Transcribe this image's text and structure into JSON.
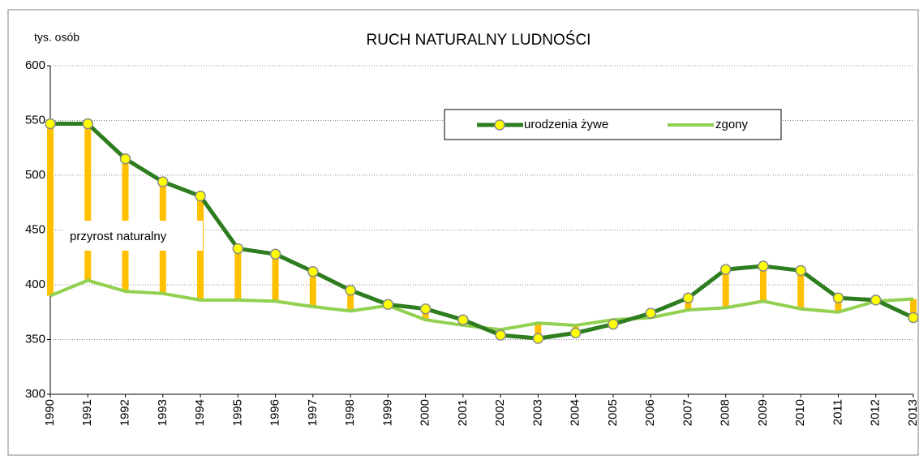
{
  "chart_data": {
    "type": "line",
    "title": "RUCH NATURALNY LUDNOŚCI",
    "y_label": "tys. osób",
    "annotation": "przyrost naturalny",
    "categories": [
      "1990",
      "1991",
      "1992",
      "1993",
      "1994",
      "1995",
      "1996",
      "1997",
      "1998",
      "1999",
      "2000",
      "2001",
      "2002",
      "2003",
      "2004",
      "2005",
      "2006",
      "2007",
      "2008",
      "2009",
      "2010",
      "2011",
      "2012",
      "2013"
    ],
    "series": [
      {
        "name": "urodzenia żywe",
        "color": "#2e7d1f",
        "marker_color": "#ffff00",
        "values": [
          547,
          547,
          515,
          494,
          481,
          433,
          428,
          412,
          395,
          382,
          378,
          368,
          354,
          351,
          356,
          364,
          374,
          388,
          414,
          417,
          413,
          388,
          386,
          370
        ]
      },
      {
        "name": "zgony",
        "color": "#92d050",
        "values": [
          390,
          404,
          394,
          392,
          386,
          386,
          385,
          380,
          376,
          381,
          368,
          363,
          359,
          365,
          363,
          368,
          370,
          377,
          379,
          385,
          378,
          375,
          385,
          387
        ]
      }
    ],
    "difference_color": "#ffc000",
    "ylim": [
      300,
      600
    ],
    "yticks": [
      300,
      350,
      400,
      450,
      500,
      550,
      600
    ],
    "grid": true
  }
}
